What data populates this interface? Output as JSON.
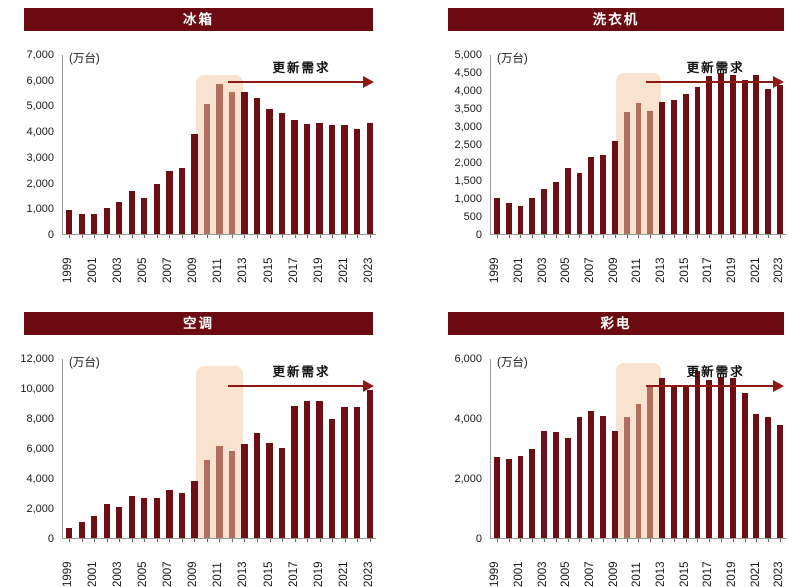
{
  "colors": {
    "bar": "#6E0E15",
    "bar_highlighted": "#B26F5E",
    "highlight_bg": "#FAE2D0",
    "title_bg": "#6B0A10",
    "title_text": "#FFFFFF",
    "arrow": "#8E1814",
    "axis": "#9A9A9A",
    "text": "#1A1A1A"
  },
  "common": {
    "unit_label": "(万台)",
    "annotation_label": "更新需求",
    "highlight_years": [
      "2010",
      "2011",
      "2012"
    ]
  },
  "chart_data": [
    {
      "type": "bar",
      "title": "冰箱",
      "ylabel": "(万台)",
      "xlabel": "",
      "ylim": [
        0,
        7000
      ],
      "grid": false,
      "y_ticks": [
        "7,000",
        "6,000",
        "5,000",
        "4,000",
        "3,000",
        "2,000",
        "1,000",
        "0"
      ],
      "categories": [
        "1999",
        "2000",
        "2001",
        "2002",
        "2003",
        "2004",
        "2005",
        "2006",
        "2007",
        "2008",
        "2009",
        "2010",
        "2011",
        "2012",
        "2013",
        "2014",
        "2015",
        "2016",
        "2017",
        "2018",
        "2019",
        "2020",
        "2021",
        "2022",
        "2023"
      ],
      "values": [
        950,
        800,
        800,
        1000,
        1250,
        1700,
        1400,
        1950,
        2450,
        2600,
        3900,
        5100,
        5850,
        5550,
        5550,
        5300,
        4900,
        4750,
        4450,
        4300,
        4350,
        4250,
        4250,
        4100,
        4350
      ],
      "highlight": {
        "years": [
          "2010",
          "2011",
          "2012"
        ],
        "top_value": 6200
      },
      "annotation": "更新需求"
    },
    {
      "type": "bar",
      "title": "洗衣机",
      "ylabel": "(万台)",
      "xlabel": "",
      "ylim": [
        0,
        5000
      ],
      "grid": false,
      "y_ticks": [
        "5,000",
        "4,500",
        "4,000",
        "3,500",
        "3,000",
        "2,500",
        "2,000",
        "1,500",
        "1,000",
        "500",
        "0"
      ],
      "categories": [
        "1999",
        "2000",
        "2001",
        "2002",
        "2003",
        "2004",
        "2005",
        "2006",
        "2007",
        "2008",
        "2009",
        "2010",
        "2011",
        "2012",
        "2013",
        "2014",
        "2015",
        "2016",
        "2017",
        "2018",
        "2019",
        "2020",
        "2021",
        "2022",
        "2023"
      ],
      "values": [
        1000,
        880,
        770,
        1000,
        1250,
        1450,
        1850,
        1700,
        2150,
        2200,
        2600,
        3400,
        3650,
        3450,
        3700,
        3750,
        3900,
        4100,
        4400,
        4500,
        4450,
        4300,
        4450,
        4050,
        4150
      ],
      "highlight": {
        "years": [
          "2010",
          "2011",
          "2012"
        ],
        "top_value": 4500
      },
      "annotation": "更新需求"
    },
    {
      "type": "bar",
      "title": "空调",
      "ylabel": "(万台)",
      "xlabel": "",
      "ylim": [
        0,
        12000
      ],
      "grid": false,
      "y_ticks": [
        "12,000",
        "10,000",
        "8,000",
        "6,000",
        "4,000",
        "2,000",
        "0"
      ],
      "categories": [
        "1999",
        "2000",
        "2001",
        "2002",
        "2003",
        "2004",
        "2005",
        "2006",
        "2007",
        "2008",
        "2009",
        "2010",
        "2011",
        "2012",
        "2013",
        "2014",
        "2015",
        "2016",
        "2017",
        "2018",
        "2019",
        "2020",
        "2021",
        "2022",
        "2023"
      ],
      "values": [
        650,
        1050,
        1500,
        2250,
        2100,
        2850,
        2650,
        2650,
        3250,
        3050,
        3800,
        5200,
        6150,
        5800,
        6300,
        7050,
        6350,
        6050,
        8850,
        9200,
        9200,
        8000,
        8800,
        8750,
        9950
      ],
      "highlight": {
        "years": [
          "2010",
          "2011",
          "2012"
        ],
        "top_value": 11500
      },
      "annotation": "更新需求"
    },
    {
      "type": "bar",
      "title": "彩电",
      "ylabel": "(万台)",
      "xlabel": "",
      "ylim": [
        0,
        6000
      ],
      "grid": false,
      "y_ticks": [
        "6,000",
        "4,000",
        "2,000",
        "0"
      ],
      "categories": [
        "1999",
        "2000",
        "2001",
        "2002",
        "2003",
        "2004",
        "2005",
        "2006",
        "2007",
        "2008",
        "2009",
        "2010",
        "2011",
        "2012",
        "2013",
        "2014",
        "2015",
        "2016",
        "2017",
        "2018",
        "2019",
        "2020",
        "2021",
        "2022",
        "2023"
      ],
      "values": [
        2700,
        2650,
        2750,
        3000,
        3600,
        3550,
        3350,
        4050,
        4250,
        4100,
        3600,
        4050,
        4500,
        5100,
        5350,
        5050,
        5100,
        5600,
        5300,
        5400,
        5350,
        4850,
        4150,
        4050,
        3800
      ],
      "highlight": {
        "years": [
          "2010",
          "2011",
          "2012"
        ],
        "top_value": 5850
      },
      "annotation": "更新需求"
    }
  ]
}
